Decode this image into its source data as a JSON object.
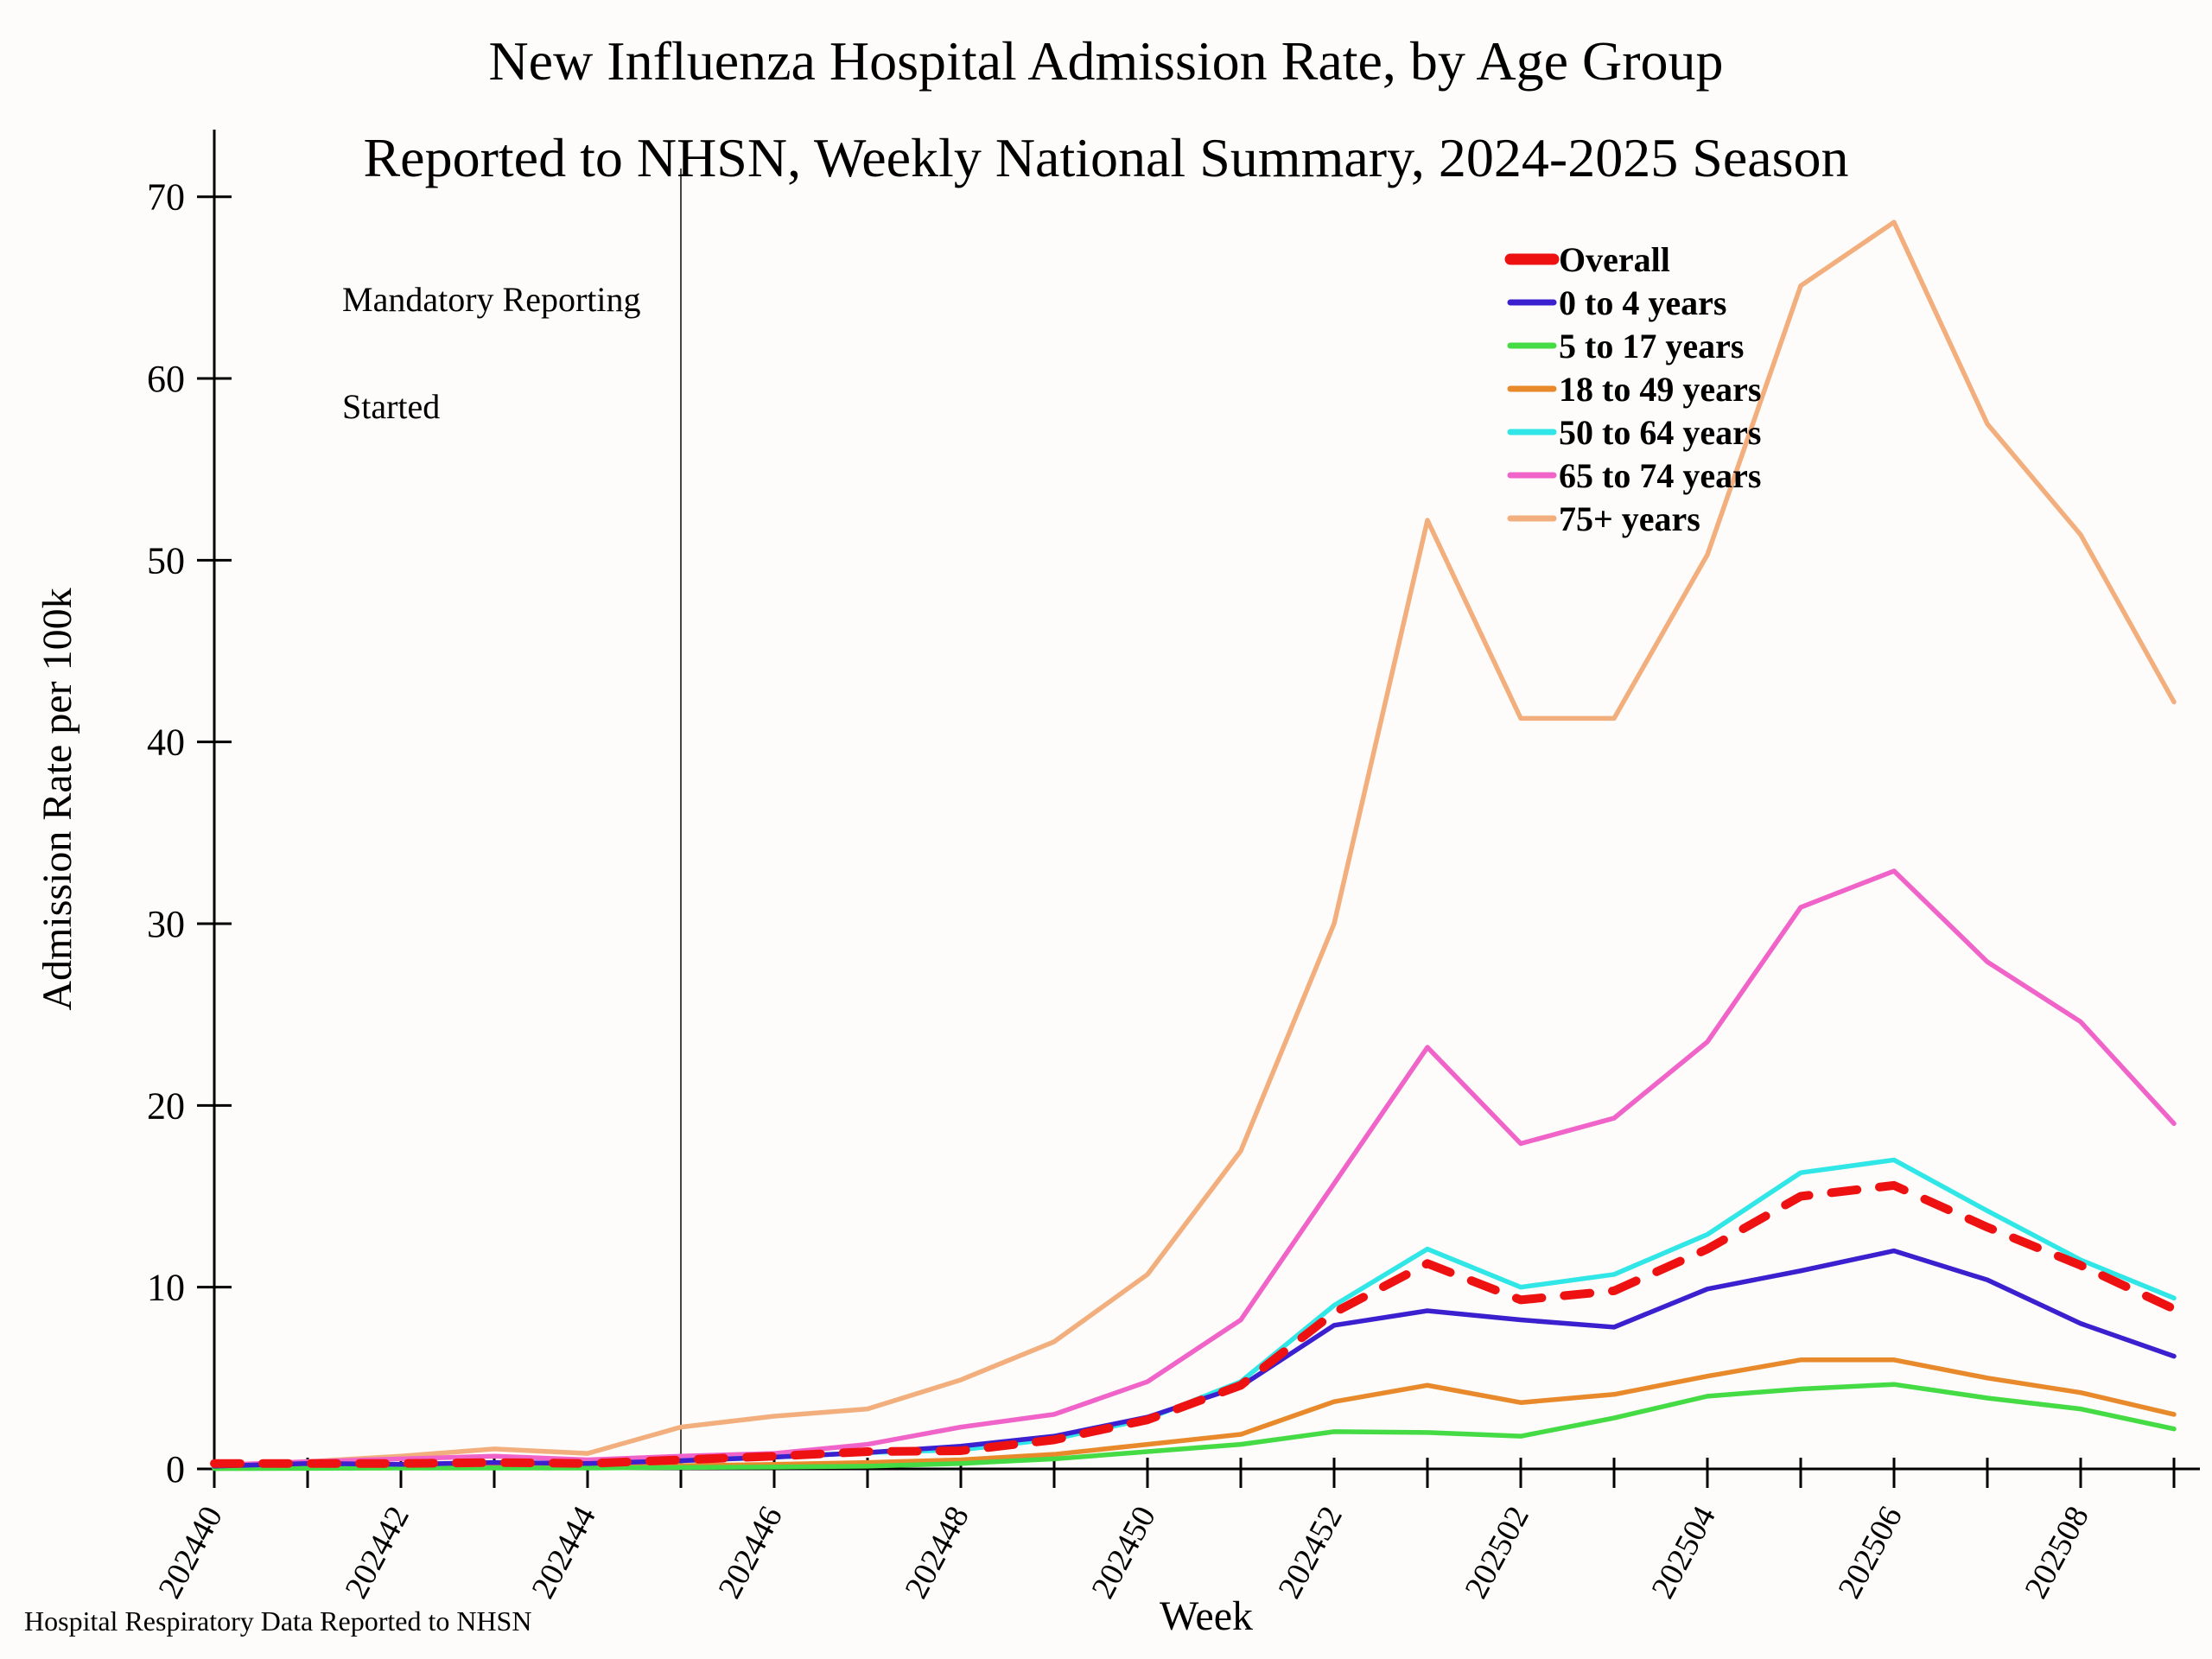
{
  "title": {
    "line1": "New Influenza Hospital Admission Rate, by Age Group",
    "line2": "Reported to NHSN, Weekly National Summary, 2024-2025 Season"
  },
  "annotation": {
    "line1": "Mandatory Reporting",
    "line2": "Started",
    "at_week": "202445"
  },
  "footer": "Hospital Respiratory Data Reported to NHSN",
  "chart_data": {
    "type": "line",
    "title": "New Influenza Hospital Admission Rate, by Age Group Reported to NHSN, Weekly National Summary, 2024-2025 Season",
    "xlabel": "Week",
    "ylabel": "Admission Rate per 100k",
    "ylim": [
      0,
      70
    ],
    "yticks": [
      0,
      10,
      20,
      30,
      40,
      50,
      60,
      70
    ],
    "grid": false,
    "legend_position": "upper-right-inside",
    "x": [
      "202440",
      "202441",
      "202442",
      "202443",
      "202444",
      "202445",
      "202446",
      "202447",
      "202448",
      "202449",
      "202450",
      "202451",
      "202452",
      "202501",
      "202502",
      "202503",
      "202504",
      "202505",
      "202506",
      "202507",
      "202508",
      "202509"
    ],
    "x_labeled_ticks": [
      "202440",
      "202442",
      "202444",
      "202446",
      "202448",
      "202450",
      "202452",
      "202502",
      "202504",
      "202506",
      "202508"
    ],
    "series": [
      {
        "name": "Overall",
        "color": "#ee1111",
        "dashed": true,
        "width": 10,
        "values": [
          0.3,
          0.3,
          0.3,
          0.35,
          0.3,
          0.5,
          0.7,
          0.95,
          1.0,
          1.6,
          2.7,
          4.6,
          8.6,
          11.3,
          9.3,
          9.8,
          12.1,
          15.0,
          15.6,
          13.3,
          11.2,
          8.8
        ]
      },
      {
        "name": "0 to 4 years",
        "color": "#3a20ce",
        "dashed": false,
        "width": 5.5,
        "values": [
          0.15,
          0.3,
          0.25,
          0.35,
          0.3,
          0.45,
          0.65,
          0.9,
          1.25,
          1.8,
          2.85,
          4.55,
          7.9,
          8.7,
          8.2,
          7.8,
          9.9,
          10.9,
          12.0,
          10.4,
          8.0,
          6.2
        ]
      },
      {
        "name": "5 to 17 years",
        "color": "#44db44",
        "dashed": false,
        "width": 5.5,
        "values": [
          0.02,
          0.03,
          0.05,
          0.05,
          0.05,
          0.08,
          0.1,
          0.15,
          0.3,
          0.55,
          0.95,
          1.35,
          2.05,
          2.0,
          1.8,
          2.8,
          4.0,
          4.4,
          4.65,
          3.9,
          3.3,
          2.2
        ]
      },
      {
        "name": "18 to 49 years",
        "color": "#e88a2b",
        "dashed": false,
        "width": 5.5,
        "values": [
          0.05,
          0.1,
          0.1,
          0.15,
          0.12,
          0.18,
          0.25,
          0.35,
          0.5,
          0.8,
          1.35,
          1.9,
          3.7,
          4.6,
          3.65,
          4.1,
          5.1,
          6.0,
          6.0,
          5.0,
          4.2,
          3.0
        ]
      },
      {
        "name": "50 to 64 years",
        "color": "#30e6e6",
        "dashed": false,
        "width": 5.5,
        "values": [
          0.1,
          0.2,
          0.2,
          0.3,
          0.25,
          0.45,
          0.65,
          0.9,
          1.05,
          1.65,
          2.75,
          4.8,
          9.0,
          12.1,
          10.0,
          10.7,
          12.9,
          16.3,
          17.0,
          14.2,
          11.5,
          9.4
        ]
      },
      {
        "name": "65 to 74 years",
        "color": "#f063c9",
        "dashed": false,
        "width": 5.5,
        "values": [
          0.2,
          0.4,
          0.55,
          0.7,
          0.5,
          0.7,
          0.85,
          1.35,
          2.3,
          3.0,
          4.8,
          8.2,
          15.7,
          23.2,
          17.9,
          19.3,
          23.5,
          30.9,
          32.9,
          27.9,
          24.6,
          19.0
        ]
      },
      {
        "name": "75+ years",
        "color": "#f2af7d",
        "dashed": false,
        "width": 5.5,
        "values": [
          0.15,
          0.4,
          0.7,
          1.1,
          0.85,
          2.3,
          2.9,
          3.3,
          4.9,
          7.0,
          10.7,
          17.5,
          30.0,
          52.2,
          41.3,
          41.3,
          50.3,
          65.1,
          68.6,
          57.5,
          51.4,
          42.2
        ]
      }
    ],
    "annotation_vline_week": "202445"
  }
}
